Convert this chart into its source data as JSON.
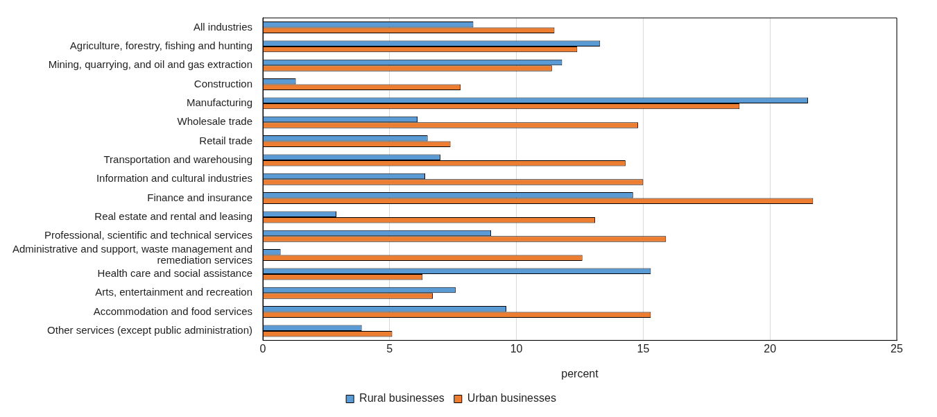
{
  "chart_data": {
    "type": "bar",
    "orientation": "horizontal",
    "xlabel": "percent",
    "categories": [
      "All industries",
      "Agriculture, forestry, fishing and hunting",
      "Mining, quarrying, and oil and gas extraction",
      "Construction",
      "Manufacturing",
      "Wholesale trade",
      "Retail trade",
      "Transportation and warehousing",
      "Information and cultural industries",
      "Finance and insurance",
      "Real estate and rental and leasing",
      "Professional, scientific and technical services",
      "Administrative and support, waste management and remediation services",
      "Health care and social assistance",
      "Arts, entertainment and recreation",
      "Accommodation and food services",
      "Other services (except public administration)"
    ],
    "series": [
      {
        "name": "Rural businesses",
        "color": "#5b9bd5",
        "values": [
          8.3,
          13.3,
          11.8,
          1.3,
          21.5,
          6.1,
          6.5,
          7.0,
          6.4,
          14.6,
          2.9,
          9.0,
          0.7,
          15.3,
          7.6,
          9.6,
          3.9
        ]
      },
      {
        "name": "Urban businesses",
        "color": "#ed7d31",
        "values": [
          11.5,
          12.4,
          11.4,
          7.8,
          18.8,
          14.8,
          7.4,
          14.3,
          15.0,
          21.7,
          13.1,
          15.9,
          12.6,
          6.3,
          6.7,
          15.3,
          5.1
        ]
      }
    ],
    "xlim": [
      0,
      25
    ],
    "xticks": [
      0,
      5,
      10,
      15,
      20,
      25
    ],
    "grid": "x",
    "legend": "bottom"
  }
}
